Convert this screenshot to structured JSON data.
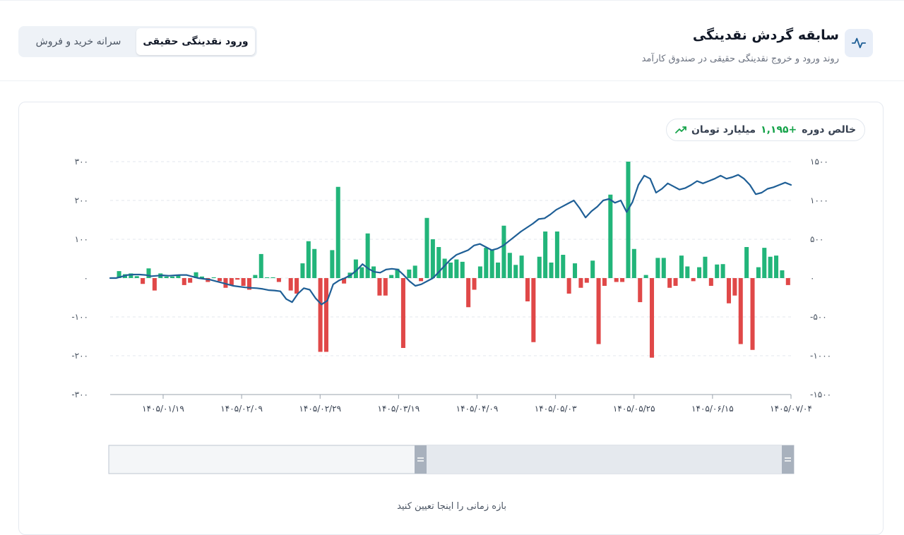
{
  "header": {
    "title": "سابقه گردش نقدینگی",
    "subtitle": "روند ورود و خروج نقدینگی حقیقی در صندوق کارآمد",
    "icon": "activity-pulse-icon",
    "tabs": [
      {
        "label": "ورود نقدینگی حقیقی",
        "active": true
      },
      {
        "label": "سرانه خرید و فروش",
        "active": false
      }
    ]
  },
  "summary": {
    "label": "خالص دوره",
    "value": "+۱,۱۹۵",
    "unit": "میلیارد تومان",
    "icon": "trending-up-icon"
  },
  "range_hint": "بازه زمانی را اینجا تعیین کنید",
  "colors": {
    "positive": "#22b57a",
    "negative": "#e04848",
    "line": "#1f5f96",
    "accent": "#1f5f96"
  },
  "chart_data": {
    "type": "bar",
    "combo_with": "line",
    "title": "",
    "xlabel": "",
    "ylabel": "",
    "ylim": [
      -300,
      300
    ],
    "y2lim": [
      -1500,
      1500
    ],
    "yticks": [
      "۳۰۰",
      "۲۰۰",
      "۱۰۰",
      "۰",
      "-۱۰۰",
      "-۲۰۰",
      "-۳۰۰"
    ],
    "y2ticks": [
      "۱۵۰۰",
      "۱۰۰۰",
      "۵۰۰",
      "۰",
      "-۵۰۰",
      "-۱۰۰۰",
      "-۱۵۰۰"
    ],
    "xticks": [
      "۱۴۰۵/۰۱/۱۹",
      "۱۴۰۵/۰۲/۰۹",
      "۱۴۰۵/۰۲/۲۹",
      "۱۴۰۵/۰۳/۱۹",
      "۱۴۰۵/۰۴/۰۹",
      "۱۴۰۵/۰۵/۰۳",
      "۱۴۰۵/۰۵/۲۵",
      "۱۴۰۵/۰۶/۱۵",
      "۱۴۰۵/۰۷/۰۴"
    ],
    "grid": "horizontal-dashed",
    "series": [
      {
        "axis": "left",
        "kind": "bar",
        "values": [
          2,
          18,
          10,
          12,
          5,
          -15,
          25,
          -32,
          12,
          4,
          4,
          8,
          -18,
          -12,
          15,
          4,
          -10,
          2,
          -8,
          -25,
          -18,
          -4,
          -20,
          -30,
          8,
          62,
          2,
          2,
          -10,
          0,
          -32,
          -40,
          38,
          95,
          75,
          -190,
          -190,
          72,
          235,
          -14,
          14,
          48,
          28,
          115,
          30,
          -45,
          -45,
          8,
          24,
          -180,
          22,
          32,
          -8,
          155,
          100,
          80,
          50,
          40,
          48,
          42,
          -75,
          -30,
          30,
          78,
          72,
          40,
          135,
          65,
          34,
          58,
          -60,
          -165,
          55,
          120,
          40,
          120,
          60,
          -40,
          38,
          -25,
          -12,
          45,
          -170,
          -20,
          215,
          -10,
          -10,
          300,
          75,
          -62,
          8,
          -205,
          52,
          52,
          -25,
          -20,
          58,
          30,
          -8,
          28,
          55,
          -20,
          35,
          36,
          -65,
          -45,
          -170,
          80,
          -185,
          28,
          78,
          55,
          58,
          20,
          -18
        ]
      },
      {
        "axis": "right",
        "kind": "line",
        "values": [
          0,
          0,
          20,
          40,
          45,
          45,
          40,
          25,
          30,
          35,
          30,
          35,
          40,
          40,
          20,
          0,
          -10,
          -20,
          -40,
          -60,
          -80,
          -100,
          -110,
          -120,
          -125,
          -130,
          -140,
          -155,
          -160,
          -170,
          -270,
          -310,
          -200,
          -130,
          -150,
          -260,
          -340,
          -290,
          -80,
          -30,
          0,
          40,
          100,
          180,
          120,
          80,
          70,
          110,
          120,
          110,
          40,
          -40,
          -100,
          -80,
          -40,
          0,
          80,
          160,
          240,
          300,
          330,
          360,
          420,
          440,
          400,
          360,
          380,
          420,
          480,
          540,
          600,
          650,
          700,
          760,
          770,
          820,
          880,
          920,
          960,
          1000,
          900,
          780,
          860,
          920,
          1000,
          1020,
          970,
          1000,
          850,
          980,
          1200,
          1320,
          1280,
          1100,
          1150,
          1220,
          1180,
          1140,
          1160,
          1200,
          1250,
          1220,
          1250,
          1280,
          1320,
          1280,
          1300,
          1330,
          1280,
          1200,
          1080,
          1100,
          1150,
          1170,
          1200,
          1230,
          1200
        ]
      }
    ]
  }
}
